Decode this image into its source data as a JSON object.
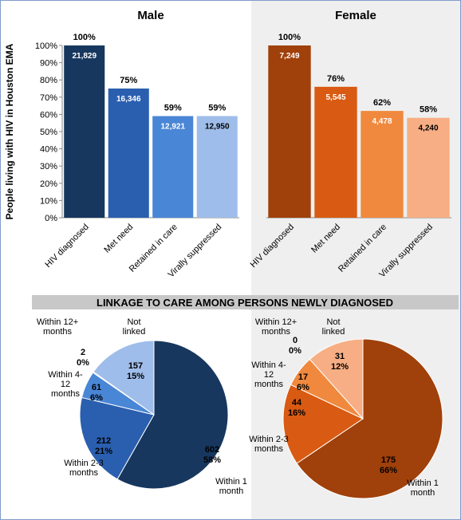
{
  "section_title": "LINKAGE TO CARE AMONG PERSONS NEWLY DIAGNOSED",
  "chart_data": [
    {
      "type": "bar",
      "title": "Male",
      "y_label": "People living with HIV in Houston EMA",
      "categories": [
        "HIV diagnosed",
        "Met need",
        "Retained in care",
        "Virally suppressed"
      ],
      "values": [
        100,
        75,
        59,
        59
      ],
      "value_labels": [
        "100%",
        "75%",
        "59%",
        "59%"
      ],
      "counts": [
        21829,
        16346,
        12921,
        12950
      ],
      "count_labels": [
        "21,829",
        "16,346",
        "12,921",
        "12,950"
      ],
      "colors": [
        "#17375e",
        "#2a5faf",
        "#4a86d6",
        "#9fbdea"
      ],
      "ylim": [
        0,
        100
      ],
      "yticks": [
        {
          "value": 0,
          "label": "0%"
        },
        {
          "value": 10,
          "label": "10%"
        },
        {
          "value": 20,
          "label": "20%"
        },
        {
          "value": 30,
          "label": "30%"
        },
        {
          "value": 40,
          "label": "40%"
        },
        {
          "value": 50,
          "label": "50%"
        },
        {
          "value": 60,
          "label": "60%"
        },
        {
          "value": 70,
          "label": "70%"
        },
        {
          "value": 80,
          "label": "80%"
        },
        {
          "value": 90,
          "label": "90%"
        },
        {
          "value": 100,
          "label": "100%"
        }
      ]
    },
    {
      "type": "bar",
      "title": "Female",
      "categories": [
        "HIV diagnosed",
        "Met need",
        "Retained in care",
        "Virally suppressed"
      ],
      "values": [
        100,
        76,
        62,
        58
      ],
      "value_labels": [
        "100%",
        "76%",
        "62%",
        "58%"
      ],
      "counts": [
        7249,
        5545,
        4478,
        4240
      ],
      "count_labels": [
        "7,249",
        "5,545",
        "4,478",
        "4,240"
      ],
      "colors": [
        "#a0400a",
        "#d95a12",
        "#f0893e",
        "#f7ae84"
      ],
      "ylim": [
        0,
        100
      ]
    },
    {
      "type": "pie",
      "categories": [
        "Within 1 month",
        "Within 2-3 months",
        "Within 4-12 months",
        "Within 12+ months",
        "Not linked"
      ],
      "values": [
        602,
        212,
        61,
        2,
        157
      ],
      "percents": [
        58,
        21,
        6,
        0,
        15
      ],
      "percent_labels": [
        "58%",
        "21%",
        "6%",
        "0%",
        "15%"
      ],
      "colors": [
        "#17375e",
        "#2a5faf",
        "#4a86d6",
        "#6f9ee0",
        "#9fbdea"
      ]
    },
    {
      "type": "pie",
      "categories": [
        "Within 1 month",
        "Within 2-3 months",
        "Within 4-12 months",
        "Within 12+ months",
        "Not linked"
      ],
      "values": [
        175,
        44,
        17,
        0,
        31
      ],
      "percents": [
        66,
        16,
        6,
        0,
        12
      ],
      "percent_labels": [
        "66%",
        "16%",
        "6%",
        "0%",
        "12%"
      ],
      "colors": [
        "#a0400a",
        "#d95a12",
        "#f0893e",
        "#f29a60",
        "#f7ae84"
      ]
    }
  ]
}
